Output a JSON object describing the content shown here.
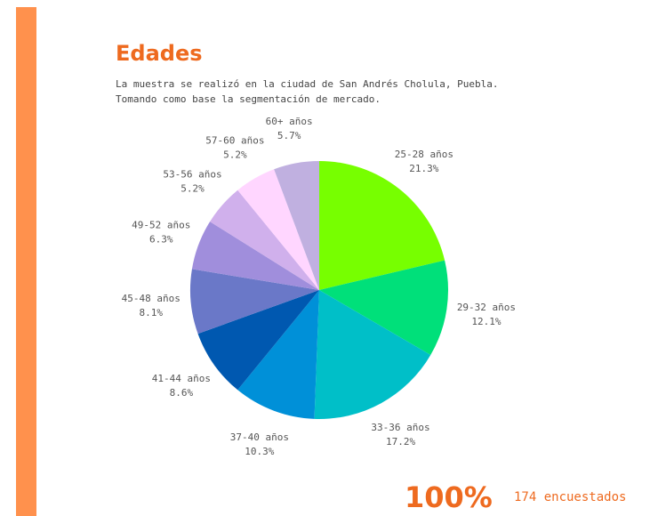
{
  "chart_data": {
    "type": "pie",
    "title": "Edades",
    "subtitle": [
      "La muestra se realizó en la ciudad de San Andrés Cholula, Puebla.",
      "Tomando como base la segmentación de mercado."
    ],
    "categories": [
      "25-28 años",
      "29-32 años",
      "33-36 años",
      "37-40 años",
      "41-44 años",
      "45-48 años",
      "49-52 años",
      "53-56 años",
      "57-60 años",
      "60+ años"
    ],
    "values": [
      21.3,
      12.1,
      17.2,
      10.3,
      8.6,
      8.1,
      6.3,
      5.2,
      5.2,
      5.7
    ],
    "value_labels": [
      "21.3%",
      "12.1%",
      "17.2%",
      "10.3%",
      "8.6%",
      "8.1%",
      "6.3%",
      "5.2%",
      "5.2%",
      "5.7%"
    ],
    "colors": [
      "#77ff00",
      "#00e07a",
      "#00bfc8",
      "#0090d8",
      "#0058b0",
      "#6a78c8",
      "#a08edc",
      "#d0b0ec",
      "#ffd6ff",
      "#c0b0e0"
    ],
    "total": {
      "value": 100,
      "label": "100%"
    },
    "footnote": "174 encuestados"
  }
}
